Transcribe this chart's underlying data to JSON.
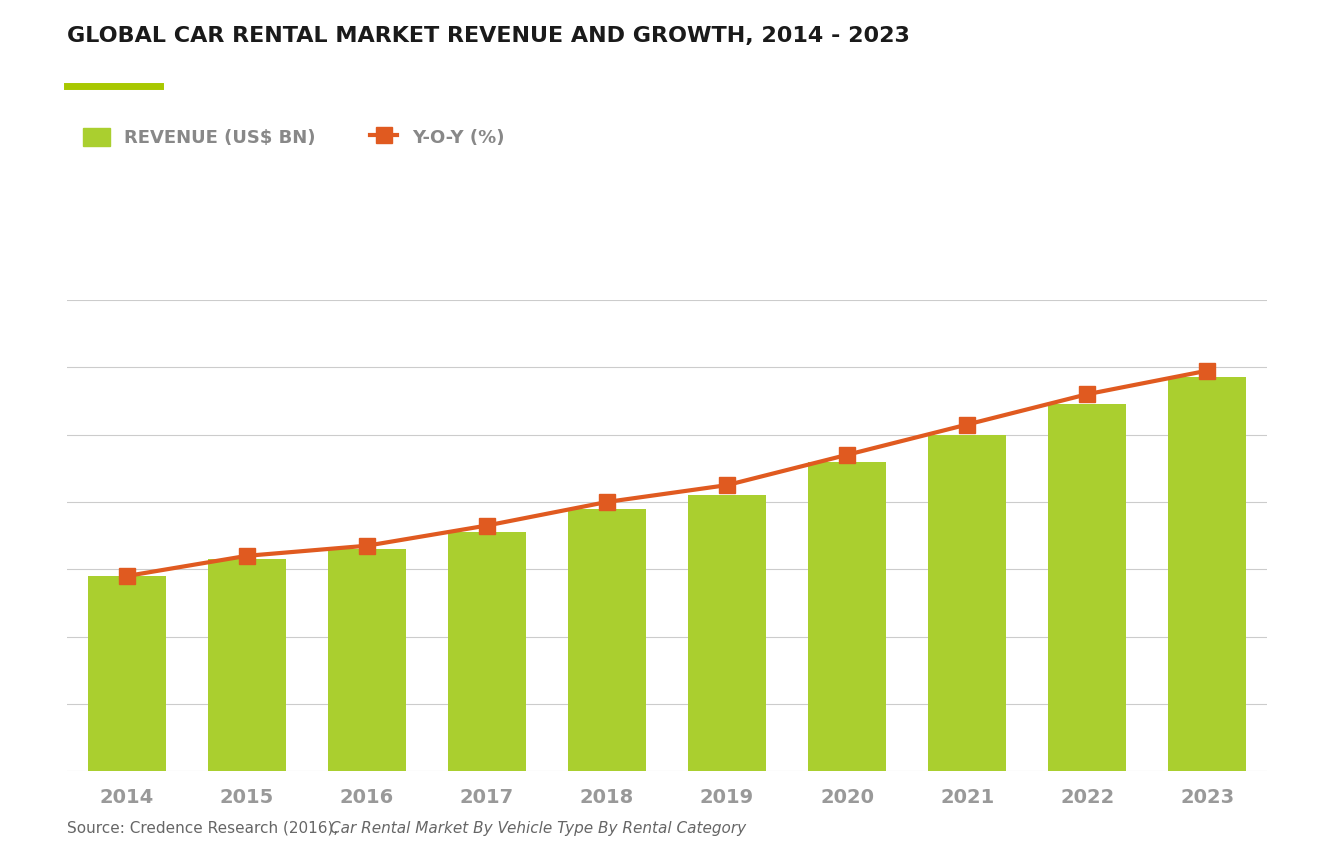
{
  "title": "GLOBAL CAR RENTAL MARKET REVENUE AND GROWTH, 2014 - 2023",
  "title_color": "#1a1a1a",
  "title_fontsize": 16,
  "accent_line_color": "#a8c800",
  "years": [
    2014,
    2015,
    2016,
    2017,
    2018,
    2019,
    2020,
    2021,
    2022,
    2023
  ],
  "revenue": [
    58,
    63,
    66,
    71,
    78,
    82,
    92,
    100,
    109,
    117
  ],
  "yoy": [
    58,
    64,
    67,
    73,
    80,
    85,
    94,
    103,
    112,
    119
  ],
  "bar_color": "#aacf2f",
  "line_color": "#e05a20",
  "marker_color": "#e05a20",
  "marker_style": "s",
  "marker_size": 11,
  "line_width": 3.0,
  "background_color": "#ffffff",
  "grid_color": "#cccccc",
  "legend_revenue_label": "REVENUE (US$ BN)",
  "legend_yoy_label": "Y-O-Y (%)",
  "source_text": "Source: Credence Research (2016), ",
  "source_italic": "Car Rental Market By Vehicle Type By Rental Category",
  "xlabel_color": "#999999",
  "xlabel_fontsize": 14,
  "bar_ylim": [
    0,
    140
  ],
  "line_ylim": [
    0,
    140
  ],
  "num_gridlines": 8,
  "bar_width": 0.65
}
